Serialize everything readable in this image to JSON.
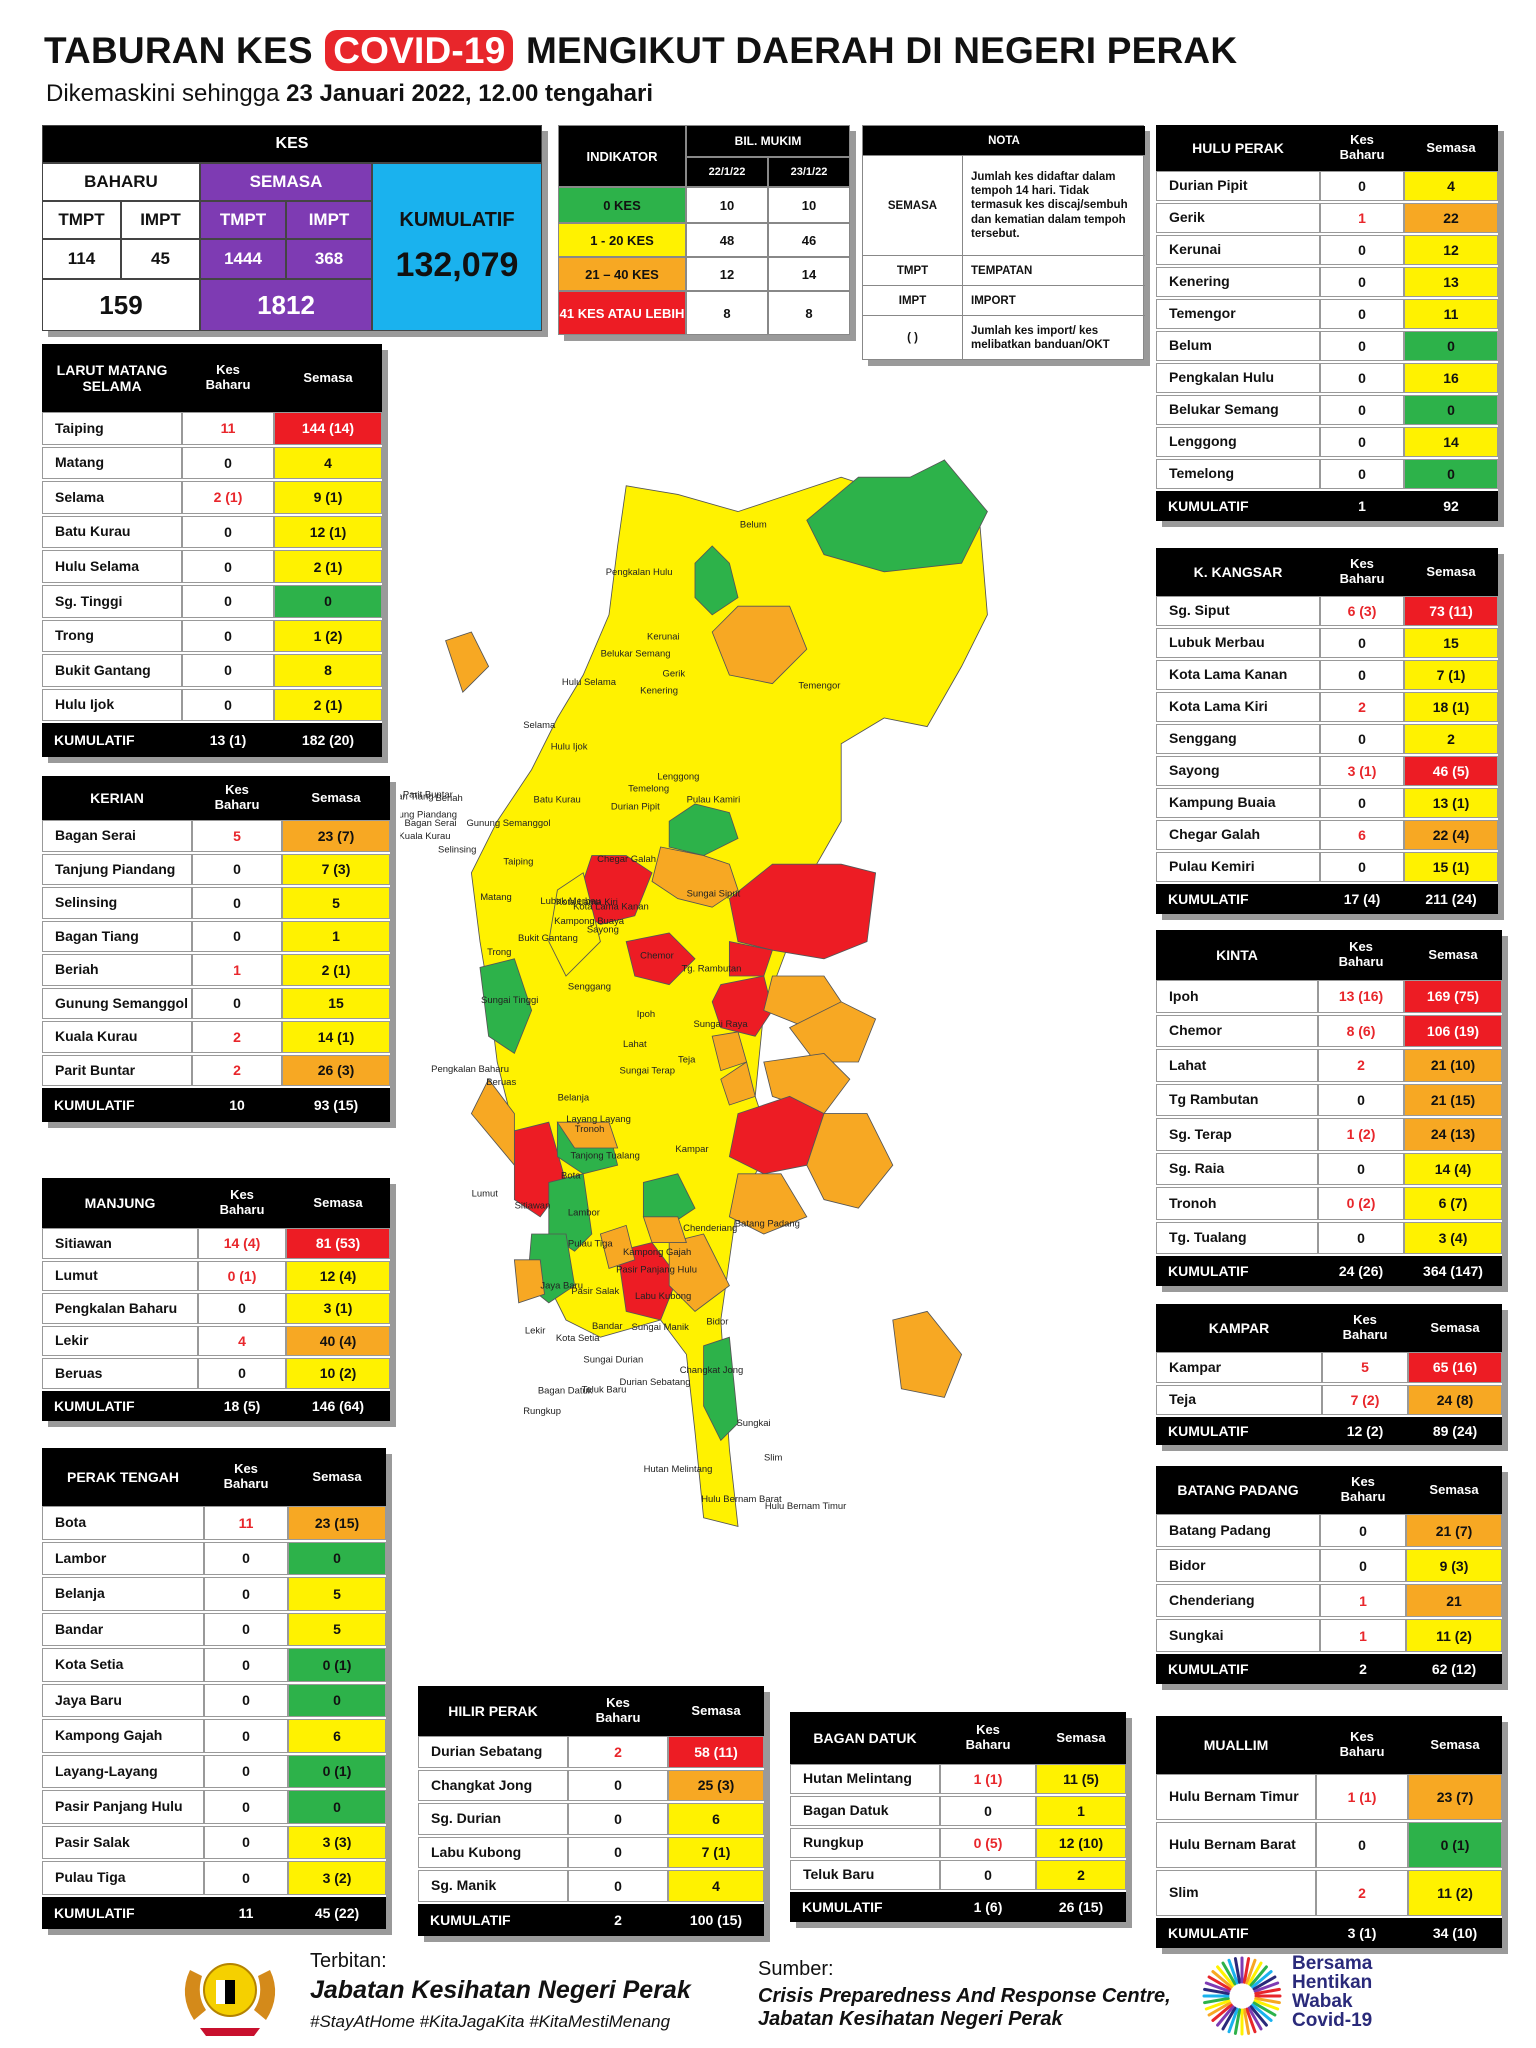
{
  "header": {
    "title_pre": "TABURAN KES",
    "title_hl": "COVID-19",
    "title_post": "MENGIKUT DAERAH DI NEGERI PERAK",
    "subtitle_pre": "Dikemaskini sehingga",
    "subtitle_date": "23 Januari 2022, 12.00 tengahari"
  },
  "kes": {
    "title": "KES",
    "baharu": "BAHARU",
    "semasa": "SEMASA",
    "tmpt": "TMPT",
    "impt": "IMPT",
    "baharu_tmpt": "114",
    "baharu_impt": "45",
    "semasa_tmpt": "1444",
    "semasa_impt": "368",
    "baharu_total": "159",
    "semasa_total": "1812",
    "kumulatif_label": "KUMULATIF",
    "kumulatif_value": "132,079"
  },
  "indicator": {
    "title": "INDIKATOR",
    "bil_mukim": "BIL. MUKIM",
    "date1": "22/1/22",
    "date2": "23/1/22",
    "rows": [
      {
        "label": "0 KES",
        "v1": "10",
        "v2": "10",
        "color": "#2db24a"
      },
      {
        "label": "1 - 20 KES",
        "v1": "48",
        "v2": "46",
        "color": "#fff200"
      },
      {
        "label": "21 – 40 KES",
        "v1": "12",
        "v2": "14",
        "color": "#f7a823"
      },
      {
        "label": "41 KES ATAU LEBIH",
        "v1": "8",
        "v2": "8",
        "color": "#ed1c24"
      }
    ]
  },
  "nota": {
    "title": "NOTA",
    "semasa_key": "SEMASA",
    "semasa_desc": "Jumlah kes didaftar dalam tempoh 14 hari. Tidak termasuk kes discaj/sembuh dan kematian dalam tempoh tersebut.",
    "tmpt_key": "TMPT",
    "tmpt_desc": "TEMPATAN",
    "impt_key": "IMPT",
    "impt_desc": "IMPORT",
    "paren_key": "(     )",
    "paren_desc": "Jumlah kes import/ kes melibatkan banduan/OKT"
  },
  "col_kes_baharu": "Kes Baharu",
  "col_semasa": "Semasa",
  "colors": {
    "green": "#2db24a",
    "yellow": "#fff200",
    "orange": "#f7a823",
    "red": "#ed1c24"
  },
  "districts": {
    "larut": {
      "name": "LARUT MATANG SELAMA",
      "rows": [
        {
          "n": "Taiping",
          "k": "11",
          "s": "144 (14)",
          "c": "red",
          "kr": true
        },
        {
          "n": "Matang",
          "k": "0",
          "s": "4",
          "c": "yellow"
        },
        {
          "n": "Selama",
          "k": "2 (1)",
          "s": "9 (1)",
          "c": "yellow",
          "kr": true
        },
        {
          "n": "Batu Kurau",
          "k": "0",
          "s": "12 (1)",
          "c": "yellow"
        },
        {
          "n": "Hulu Selama",
          "k": "0",
          "s": "2 (1)",
          "c": "yellow"
        },
        {
          "n": "Sg. Tinggi",
          "k": "0",
          "s": "0",
          "c": "green"
        },
        {
          "n": "Trong",
          "k": "0",
          "s": "1 (2)",
          "c": "yellow"
        },
        {
          "n": "Bukit Gantang",
          "k": "0",
          "s": "8",
          "c": "yellow"
        },
        {
          "n": "Hulu Ijok",
          "k": "0",
          "s": "2 (1)",
          "c": "yellow"
        }
      ],
      "kumulatif": {
        "label": "KUMULATIF",
        "k": "13 (1)",
        "s": "182 (20)"
      }
    },
    "kerian": {
      "name": "KERIAN",
      "rows": [
        {
          "n": "Bagan Serai",
          "k": "5",
          "s": "23 (7)",
          "c": "orange",
          "kr": true
        },
        {
          "n": "Tanjung Piandang",
          "k": "0",
          "s": "7 (3)",
          "c": "yellow"
        },
        {
          "n": "Selinsing",
          "k": "0",
          "s": "5",
          "c": "yellow"
        },
        {
          "n": "Bagan Tiang",
          "k": "0",
          "s": "1",
          "c": "yellow"
        },
        {
          "n": "Beriah",
          "k": "1",
          "s": "2 (1)",
          "c": "yellow",
          "kr": true
        },
        {
          "n": "Gunung Semanggol",
          "k": "0",
          "s": "15",
          "c": "yellow"
        },
        {
          "n": "Kuala Kurau",
          "k": "2",
          "s": "14 (1)",
          "c": "yellow",
          "kr": true
        },
        {
          "n": "Parit Buntar",
          "k": "2",
          "s": "26 (3)",
          "c": "orange",
          "kr": true
        }
      ],
      "kumulatif": {
        "label": "KUMULATIF",
        "k": "10",
        "s": "93 (15)"
      }
    },
    "manjung": {
      "name": "MANJUNG",
      "rows": [
        {
          "n": "Sitiawan",
          "k": "14 (4)",
          "s": "81 (53)",
          "c": "red",
          "kr": true
        },
        {
          "n": "Lumut",
          "k": "0 (1)",
          "s": "12 (4)",
          "c": "yellow",
          "kr": true
        },
        {
          "n": "Pengkalan Baharu",
          "k": "0",
          "s": "3 (1)",
          "c": "yellow"
        },
        {
          "n": "Lekir",
          "k": "4",
          "s": "40 (4)",
          "c": "orange",
          "kr": true
        },
        {
          "n": "Beruas",
          "k": "0",
          "s": "10 (2)",
          "c": "yellow"
        }
      ],
      "kumulatif": {
        "label": "KUMULATIF",
        "k": "18 (5)",
        "s": "146 (64)"
      }
    },
    "perak_tengah": {
      "name": "PERAK TENGAH",
      "rows": [
        {
          "n": "Bota",
          "k": "11",
          "s": "23 (15)",
          "c": "orange",
          "kr": true
        },
        {
          "n": "Lambor",
          "k": "0",
          "s": "0",
          "c": "green"
        },
        {
          "n": "Belanja",
          "k": "0",
          "s": "5",
          "c": "yellow"
        },
        {
          "n": "Bandar",
          "k": "0",
          "s": "5",
          "c": "yellow"
        },
        {
          "n": "Kota Setia",
          "k": "0",
          "s": "0 (1)",
          "c": "green"
        },
        {
          "n": "Jaya Baru",
          "k": "0",
          "s": "0",
          "c": "green"
        },
        {
          "n": "Kampong Gajah",
          "k": "0",
          "s": "6",
          "c": "yellow"
        },
        {
          "n": "Layang-Layang",
          "k": "0",
          "s": "0 (1)",
          "c": "green"
        },
        {
          "n": "Pasir Panjang Hulu",
          "k": "0",
          "s": "0",
          "c": "green"
        },
        {
          "n": "Pasir Salak",
          "k": "0",
          "s": "3 (3)",
          "c": "yellow"
        },
        {
          "n": "Pulau Tiga",
          "k": "0",
          "s": "3 (2)",
          "c": "yellow"
        }
      ],
      "kumulatif": {
        "label": "KUMULATIF",
        "k": "11",
        "s": "45 (22)"
      }
    },
    "hilir_perak": {
      "name": "HILIR PERAK",
      "rows": [
        {
          "n": "Durian Sebatang",
          "k": "2",
          "s": "58 (11)",
          "c": "red",
          "kr": true
        },
        {
          "n": "Changkat Jong",
          "k": "0",
          "s": "25 (3)",
          "c": "orange"
        },
        {
          "n": "Sg. Durian",
          "k": "0",
          "s": "6",
          "c": "yellow"
        },
        {
          "n": "Labu Kubong",
          "k": "0",
          "s": "7 (1)",
          "c": "yellow"
        },
        {
          "n": "Sg. Manik",
          "k": "0",
          "s": "4",
          "c": "yellow"
        }
      ],
      "kumulatif": {
        "label": "KUMULATIF",
        "k": "2",
        "s": "100 (15)"
      }
    },
    "bagan_datuk": {
      "name": "BAGAN DATUK",
      "rows": [
        {
          "n": "Hutan Melintang",
          "k": "1 (1)",
          "s": "11 (5)",
          "c": "yellow",
          "kr": true
        },
        {
          "n": "Bagan Datuk",
          "k": "0",
          "s": "1",
          "c": "yellow"
        },
        {
          "n": "Rungkup",
          "k": "0 (5)",
          "s": "12 (10)",
          "c": "yellow",
          "kr": true
        },
        {
          "n": "Teluk Baru",
          "k": "0",
          "s": "2",
          "c": "yellow"
        }
      ],
      "kumulatif": {
        "label": "KUMULATIF",
        "k": "1 (6)",
        "s": "26 (15)"
      }
    },
    "hulu_perak": {
      "name": "HULU PERAK",
      "rows": [
        {
          "n": "Durian Pipit",
          "k": "0",
          "s": "4",
          "c": "yellow"
        },
        {
          "n": "Gerik",
          "k": "1",
          "s": "22",
          "c": "orange",
          "kr": true
        },
        {
          "n": "Kerunai",
          "k": "0",
          "s": "12",
          "c": "yellow"
        },
        {
          "n": "Kenering",
          "k": "0",
          "s": "13",
          "c": "yellow"
        },
        {
          "n": "Temengor",
          "k": "0",
          "s": "11",
          "c": "yellow"
        },
        {
          "n": "Belum",
          "k": "0",
          "s": "0",
          "c": "green"
        },
        {
          "n": "Pengkalan Hulu",
          "k": "0",
          "s": "16",
          "c": "yellow"
        },
        {
          "n": "Belukar Semang",
          "k": "0",
          "s": "0",
          "c": "green"
        },
        {
          "n": "Lenggong",
          "k": "0",
          "s": "14",
          "c": "yellow"
        },
        {
          "n": "Temelong",
          "k": "0",
          "s": "0",
          "c": "green"
        }
      ],
      "kumulatif": {
        "label": "KUMULATIF",
        "k": "1",
        "s": "92"
      }
    },
    "kangsar": {
      "name": "K. KANGSAR",
      "rows": [
        {
          "n": "Sg. Siput",
          "k": "6 (3)",
          "s": "73 (11)",
          "c": "red",
          "kr": true
        },
        {
          "n": "Lubuk Merbau",
          "k": "0",
          "s": "15",
          "c": "yellow"
        },
        {
          "n": "Kota Lama Kanan",
          "k": "0",
          "s": "7 (1)",
          "c": "yellow"
        },
        {
          "n": "Kota Lama Kiri",
          "k": "2",
          "s": "18 (1)",
          "c": "yellow",
          "kr": true
        },
        {
          "n": "Senggang",
          "k": "0",
          "s": "2",
          "c": "yellow"
        },
        {
          "n": "Sayong",
          "k": "3 (1)",
          "s": "46 (5)",
          "c": "red",
          "kr": true
        },
        {
          "n": "Kampung Buaia",
          "k": "0",
          "s": "13 (1)",
          "c": "yellow"
        },
        {
          "n": "Chegar Galah",
          "k": "6",
          "s": "22 (4)",
          "c": "orange",
          "kr": true
        },
        {
          "n": "Pulau Kemiri",
          "k": "0",
          "s": "15 (1)",
          "c": "yellow"
        }
      ],
      "kumulatif": {
        "label": "KUMULATIF",
        "k": "17 (4)",
        "s": "211 (24)"
      }
    },
    "kinta": {
      "name": "KINTA",
      "rows": [
        {
          "n": "Ipoh",
          "k": "13 (16)",
          "s": "169 (75)",
          "c": "red",
          "kr": true
        },
        {
          "n": "Chemor",
          "k": "8 (6)",
          "s": "106 (19)",
          "c": "red",
          "kr": true
        },
        {
          "n": "Lahat",
          "k": "2",
          "s": "21 (10)",
          "c": "orange",
          "kr": true
        },
        {
          "n": "Tg Rambutan",
          "k": "0",
          "s": "21 (15)",
          "c": "orange"
        },
        {
          "n": "Sg. Terap",
          "k": "1 (2)",
          "s": "24 (13)",
          "c": "orange",
          "kr": true
        },
        {
          "n": "Sg. Raia",
          "k": "0",
          "s": "14 (4)",
          "c": "yellow"
        },
        {
          "n": "Tronoh",
          "k": "0 (2)",
          "s": "6 (7)",
          "c": "yellow",
          "kr": true
        },
        {
          "n": "Tg. Tualang",
          "k": "0",
          "s": "3 (4)",
          "c": "yellow"
        }
      ],
      "kumulatif": {
        "label": "KUMULATIF",
        "k": "24 (26)",
        "s": "364 (147)"
      }
    },
    "kampar": {
      "name": "KAMPAR",
      "rows": [
        {
          "n": "Kampar",
          "k": "5",
          "s": "65 (16)",
          "c": "red",
          "kr": true
        },
        {
          "n": "Teja",
          "k": "7 (2)",
          "s": "24 (8)",
          "c": "orange",
          "kr": true
        }
      ],
      "kumulatif": {
        "label": "KUMULATIF",
        "k": "12 (2)",
        "s": "89 (24)"
      }
    },
    "batang_padang": {
      "name": "BATANG PADANG",
      "rows": [
        {
          "n": "Batang Padang",
          "k": "0",
          "s": "21 (7)",
          "c": "orange"
        },
        {
          "n": "Bidor",
          "k": "0",
          "s": "9 (3)",
          "c": "yellow"
        },
        {
          "n": "Chenderiang",
          "k": "1",
          "s": "21",
          "c": "orange",
          "kr": true
        },
        {
          "n": "Sungkai",
          "k": "1",
          "s": "11 (2)",
          "c": "yellow",
          "kr": true
        }
      ],
      "kumulatif": {
        "label": "KUMULATIF",
        "k": "2",
        "s": "62 (12)"
      }
    },
    "muallim": {
      "name": "MUALLIM",
      "rows": [
        {
          "n": "Hulu Bernam Timur",
          "k": "1 (1)",
          "s": "23 (7)",
          "c": "orange",
          "kr": true
        },
        {
          "n": "Hulu Bernam Barat",
          "k": "0",
          "s": "0 (1)",
          "c": "green"
        },
        {
          "n": "Slim",
          "k": "2",
          "s": "11 (2)",
          "c": "yellow",
          "kr": true
        }
      ],
      "kumulatif": {
        "label": "KUMULATIF",
        "k": "3 (1)",
        "s": "34 (10)"
      }
    }
  },
  "map_labels": [
    "Belum",
    "Pengkalan Hulu",
    "Belukar Semang",
    "Kerunai",
    "Gerik",
    "Temengor",
    "Kenering",
    "Hulu Selama",
    "Selama",
    "Hulu Ijok",
    "Lenggong",
    "Temelong",
    "Durian Pipit",
    "Pulau Kamiri",
    "Bagan Tiang",
    "Parit Buntar",
    "Tanjung Piandang",
    "Beriah",
    "Bagan Serai",
    "Gunung Semanggol",
    "Kuala Kurau",
    "Selinsing",
    "Batu Kurau",
    "Chegar Galah",
    "Taiping",
    "Matang",
    "Sungai Siput",
    "Lubok Merbau",
    "Kota Lama Kiri",
    "Kota Lama Kanan",
    "Kampong Buaya",
    "Sayong",
    "Bukit Gantang",
    "Trong",
    "Chemor",
    "Tg. Rambutan",
    "Senggang",
    "Sungai Tinggi",
    "Ipoh",
    "Sungai Raya",
    "Lahat",
    "Sungai Terap",
    "Teja",
    "Pengkalan Baharu",
    "Beruas",
    "Belanja",
    "Layang Layang",
    "Tronoh",
    "Tanjong Tualang",
    "Kampar",
    "Bota",
    "Lumut",
    "Sitiawan",
    "Lambor",
    "Chenderiang",
    "Batang Padang",
    "Pulau Tiga",
    "Kampong Gajah",
    "Pasir Panjang Hulu",
    "Jaya Baru",
    "Pasir Salak",
    "Labu Kubong",
    "Bidor",
    "Bandar",
    "Sungai Manik",
    "Lekir",
    "Kota Setia",
    "Sungai Durian",
    "Changkat Jong",
    "Durian Sebatang",
    "Bagan Datuk",
    "Teluk Baru",
    "Rungkup",
    "Sungkai",
    "Slim",
    "Hutan Melintang",
    "Hulu Bernam Barat",
    "Hulu Bernam Timur"
  ],
  "footer": {
    "terbitan_label": "Terbitan:",
    "terbitan_org": "Jabatan Kesihatan Negeri Perak",
    "hashtags": "#StayAtHome #KitaJagaKita #KitaMestiMenang",
    "sumber_label": "Sumber:",
    "sumber_line1": "Crisis Preparedness And Response Centre,",
    "sumber_line2": "Jabatan Kesihatan Negeri Perak",
    "campaign_l1": "Bersama",
    "campaign_l2": "Hentikan",
    "campaign_l3": "Wabak",
    "campaign_l4": "Covid-19"
  }
}
